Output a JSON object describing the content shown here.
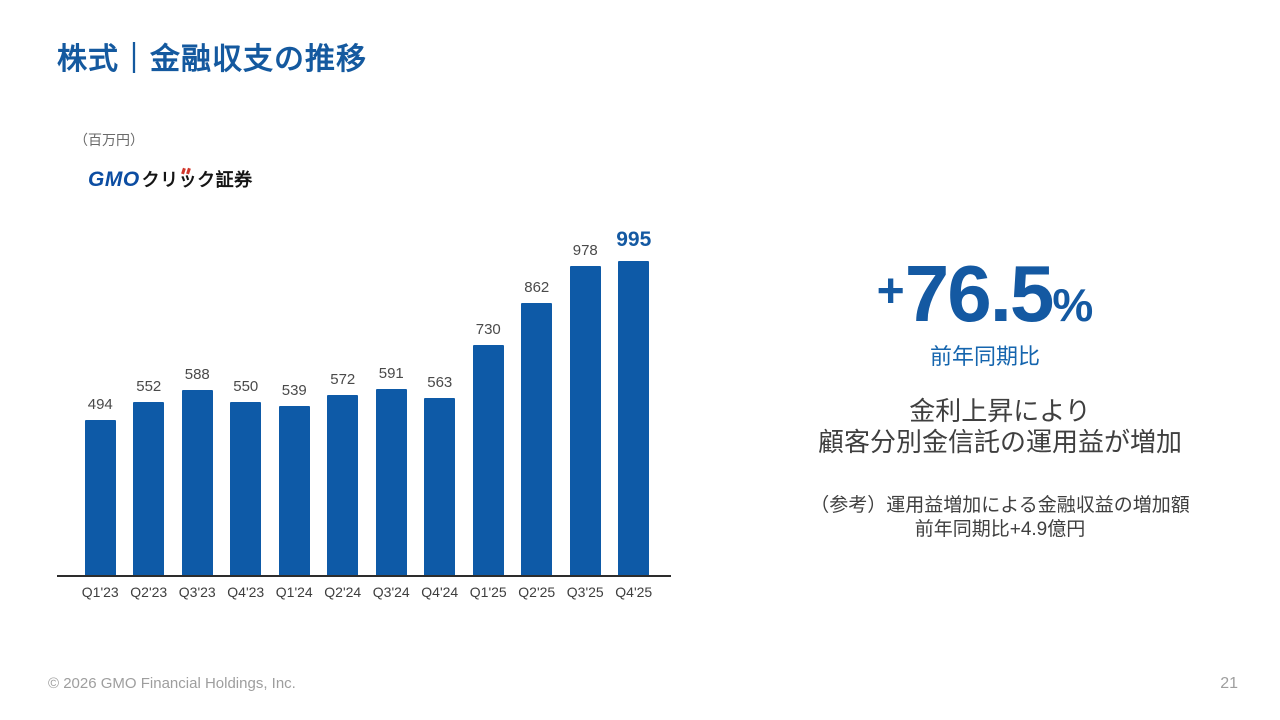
{
  "slide": {
    "title": "株式｜金融収支の推移",
    "copyright": "© 2026 GMO Financial Holdings, Inc.",
    "page_number": "21"
  },
  "chart": {
    "unit_label": "（百万円）",
    "logo": {
      "gmo": "GMO",
      "part1": "クリ",
      "tsu": "ッ",
      "part2": "ク証券"
    }
  },
  "chart_data": {
    "type": "bar",
    "series_name": "GMOクリック証券",
    "categories": [
      "Q1'23",
      "Q2'23",
      "Q3'23",
      "Q4'23",
      "Q1'24",
      "Q2'24",
      "Q3'24",
      "Q4'24",
      "Q1'25",
      "Q2'25",
      "Q3'25",
      "Q4'25"
    ],
    "values": [
      494,
      552,
      588,
      550,
      539,
      572,
      591,
      563,
      730,
      862,
      978,
      995
    ],
    "unit": "百万円",
    "ylim": [
      0,
      1050
    ],
    "grid": false,
    "legend": "none",
    "data_labels": true,
    "bar_color": "#0E5AA7",
    "label_color": "#4A4A4A",
    "highlight_last": true,
    "highlight_color": "#1459A2"
  },
  "right_panel": {
    "growth": {
      "plus": "+",
      "value": "76.5",
      "percent": "%"
    },
    "growth_caption": "前年同期比",
    "message_line1": "金利上昇により",
    "message_line2": "顧客分別金信託の運用益が増加",
    "reference_line1": "（参考）運用益増加による金融収益の増加額",
    "reference_line2": "前年同期比+4.9億円"
  },
  "colors": {
    "brand_blue": "#0E5AA7",
    "title_blue": "#14599F",
    "text_dark": "#3F3F3F",
    "footer_gray": "#9E9E9E",
    "logo_red": "#D1372C"
  }
}
